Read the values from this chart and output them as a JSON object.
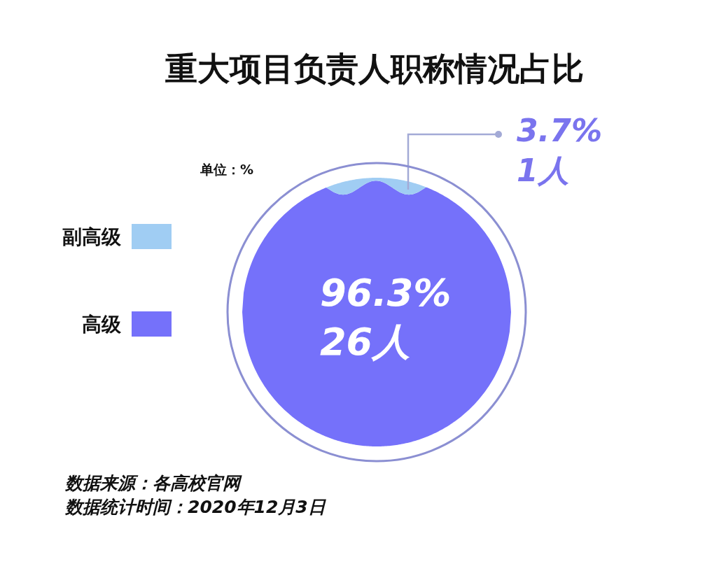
{
  "chart_data": {
    "type": "other",
    "title": "重大项目负责人职称情况占比",
    "categories": [
      "副高级",
      "高级"
    ],
    "values": [
      3.7,
      96.3
    ],
    "colors": [
      "#a0cdf3",
      "#7571fa"
    ],
    "value_labels": [
      "3.7%\n1人",
      "96.3%\n26人"
    ],
    "annotations": [
      "单位：%",
      "数据来源：各高校官网",
      "数据统计时间：2020年12月3日"
    ]
  }
}
